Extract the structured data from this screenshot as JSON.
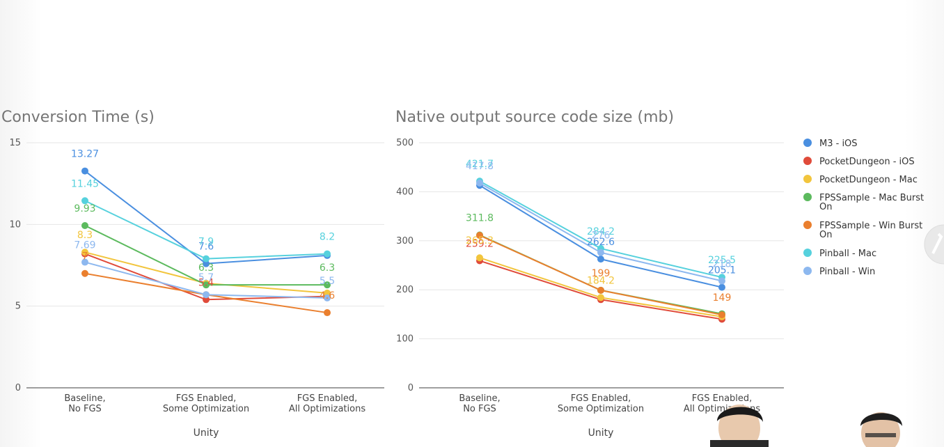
{
  "chart_data": [
    {
      "type": "line",
      "title": "Conversion Time (s)",
      "xlabel": "Unity",
      "ylabel": "",
      "categories": [
        "Baseline, No FGS",
        "FGS Enabled, Some Optimization",
        "FGS Enabled, All Optimizations"
      ],
      "ylim": [
        0,
        15
      ],
      "yticks": [
        0,
        5,
        10,
        15
      ],
      "grid": true,
      "series": [
        {
          "name": "M3 - iOS",
          "color": "#4a8fe0",
          "values": [
            13.27,
            7.6,
            8.1
          ],
          "labels": [
            "13.27",
            "7.6",
            ""
          ]
        },
        {
          "name": "PocketDungeon - iOS",
          "color": "#e04b3a",
          "values": [
            8.2,
            5.4,
            5.6
          ],
          "labels": [
            "",
            "5.4",
            ""
          ]
        },
        {
          "name": "PocketDungeon - Mac",
          "color": "#f2c53d",
          "values": [
            8.3,
            6.4,
            5.8
          ],
          "labels": [
            "8.3",
            "",
            ""
          ]
        },
        {
          "name": "FPSSample - Mac Burst On",
          "color": "#5cba5e",
          "values": [
            9.93,
            6.3,
            6.3
          ],
          "labels": [
            "9.93",
            "6.3",
            "6.3"
          ]
        },
        {
          "name": "FPSSample - Win Burst On",
          "color": "#ea7f2e",
          "values": [
            7,
            5.7,
            4.6
          ],
          "labels": [
            "7",
            "",
            "4.6"
          ]
        },
        {
          "name": "Pinball - Mac",
          "color": "#56d1dd",
          "values": [
            11.45,
            7.9,
            8.2
          ],
          "labels": [
            "11.45",
            "7.9",
            "8.2"
          ]
        },
        {
          "name": "Pinball - Win",
          "color": "#8db8ef",
          "values": [
            7.69,
            5.7,
            5.5
          ],
          "labels": [
            "7.69",
            "5.7",
            "5.5"
          ]
        }
      ]
    },
    {
      "type": "line",
      "title": "Native output source code size (mb)",
      "xlabel": "Unity",
      "ylabel": "",
      "categories": [
        "Baseline, No FGS",
        "FGS Enabled, Some Optimization",
        "FGS Enabled, All Optimizations"
      ],
      "ylim": [
        0,
        500
      ],
      "yticks": [
        0,
        100,
        200,
        300,
        400,
        500
      ],
      "grid": true,
      "series": [
        {
          "name": "M3 - iOS",
          "color": "#4a8fe0",
          "values": [
            413,
            262.6,
            205.1
          ],
          "labels": [
            "",
            "262.6",
            "205.1"
          ]
        },
        {
          "name": "PocketDungeon - iOS",
          "color": "#e04b3a",
          "values": [
            259.2,
            180,
            140
          ],
          "labels": [
            "259.2",
            "",
            ""
          ]
        },
        {
          "name": "PocketDungeon - Mac",
          "color": "#f2c53d",
          "values": [
            265.3,
            184.2,
            145
          ],
          "labels": [
            "265.3",
            "184.2",
            ""
          ]
        },
        {
          "name": "FPSSample - Mac Burst On",
          "color": "#5cba5e",
          "values": [
            311.8,
            199,
            151
          ],
          "labels": [
            "311.8",
            "",
            ""
          ]
        },
        {
          "name": "FPSSample - Win Burst On",
          "color": "#ea7f2e",
          "values": [
            311,
            199,
            149
          ],
          "labels": [
            "",
            "199",
            "149"
          ]
        },
        {
          "name": "Pinball - Mac",
          "color": "#56d1dd",
          "values": [
            421.7,
            284.2,
            225.5
          ],
          "labels": [
            "421.7",
            "284.2",
            "225.5"
          ]
        },
        {
          "name": "Pinball - Win",
          "color": "#8db8ef",
          "values": [
            417.8,
            276,
            218
          ],
          "labels": [
            "417.8",
            "276",
            "218"
          ]
        }
      ]
    }
  ],
  "legend": {
    "placement": "right",
    "items": [
      {
        "label": "M3 - iOS",
        "color": "#4a8fe0"
      },
      {
        "label": "PocketDungeon - iOS",
        "color": "#e04b3a"
      },
      {
        "label": "PocketDungeon - Mac",
        "color": "#f2c53d"
      },
      {
        "label": "FPSSample - Mac Burst On",
        "color": "#5cba5e"
      },
      {
        "label": "FPSSample - Win Burst On",
        "color": "#ea7f2e"
      },
      {
        "label": "Pinball - Mac",
        "color": "#56d1dd"
      },
      {
        "label": "Pinball - Win",
        "color": "#8db8ef"
      }
    ]
  }
}
